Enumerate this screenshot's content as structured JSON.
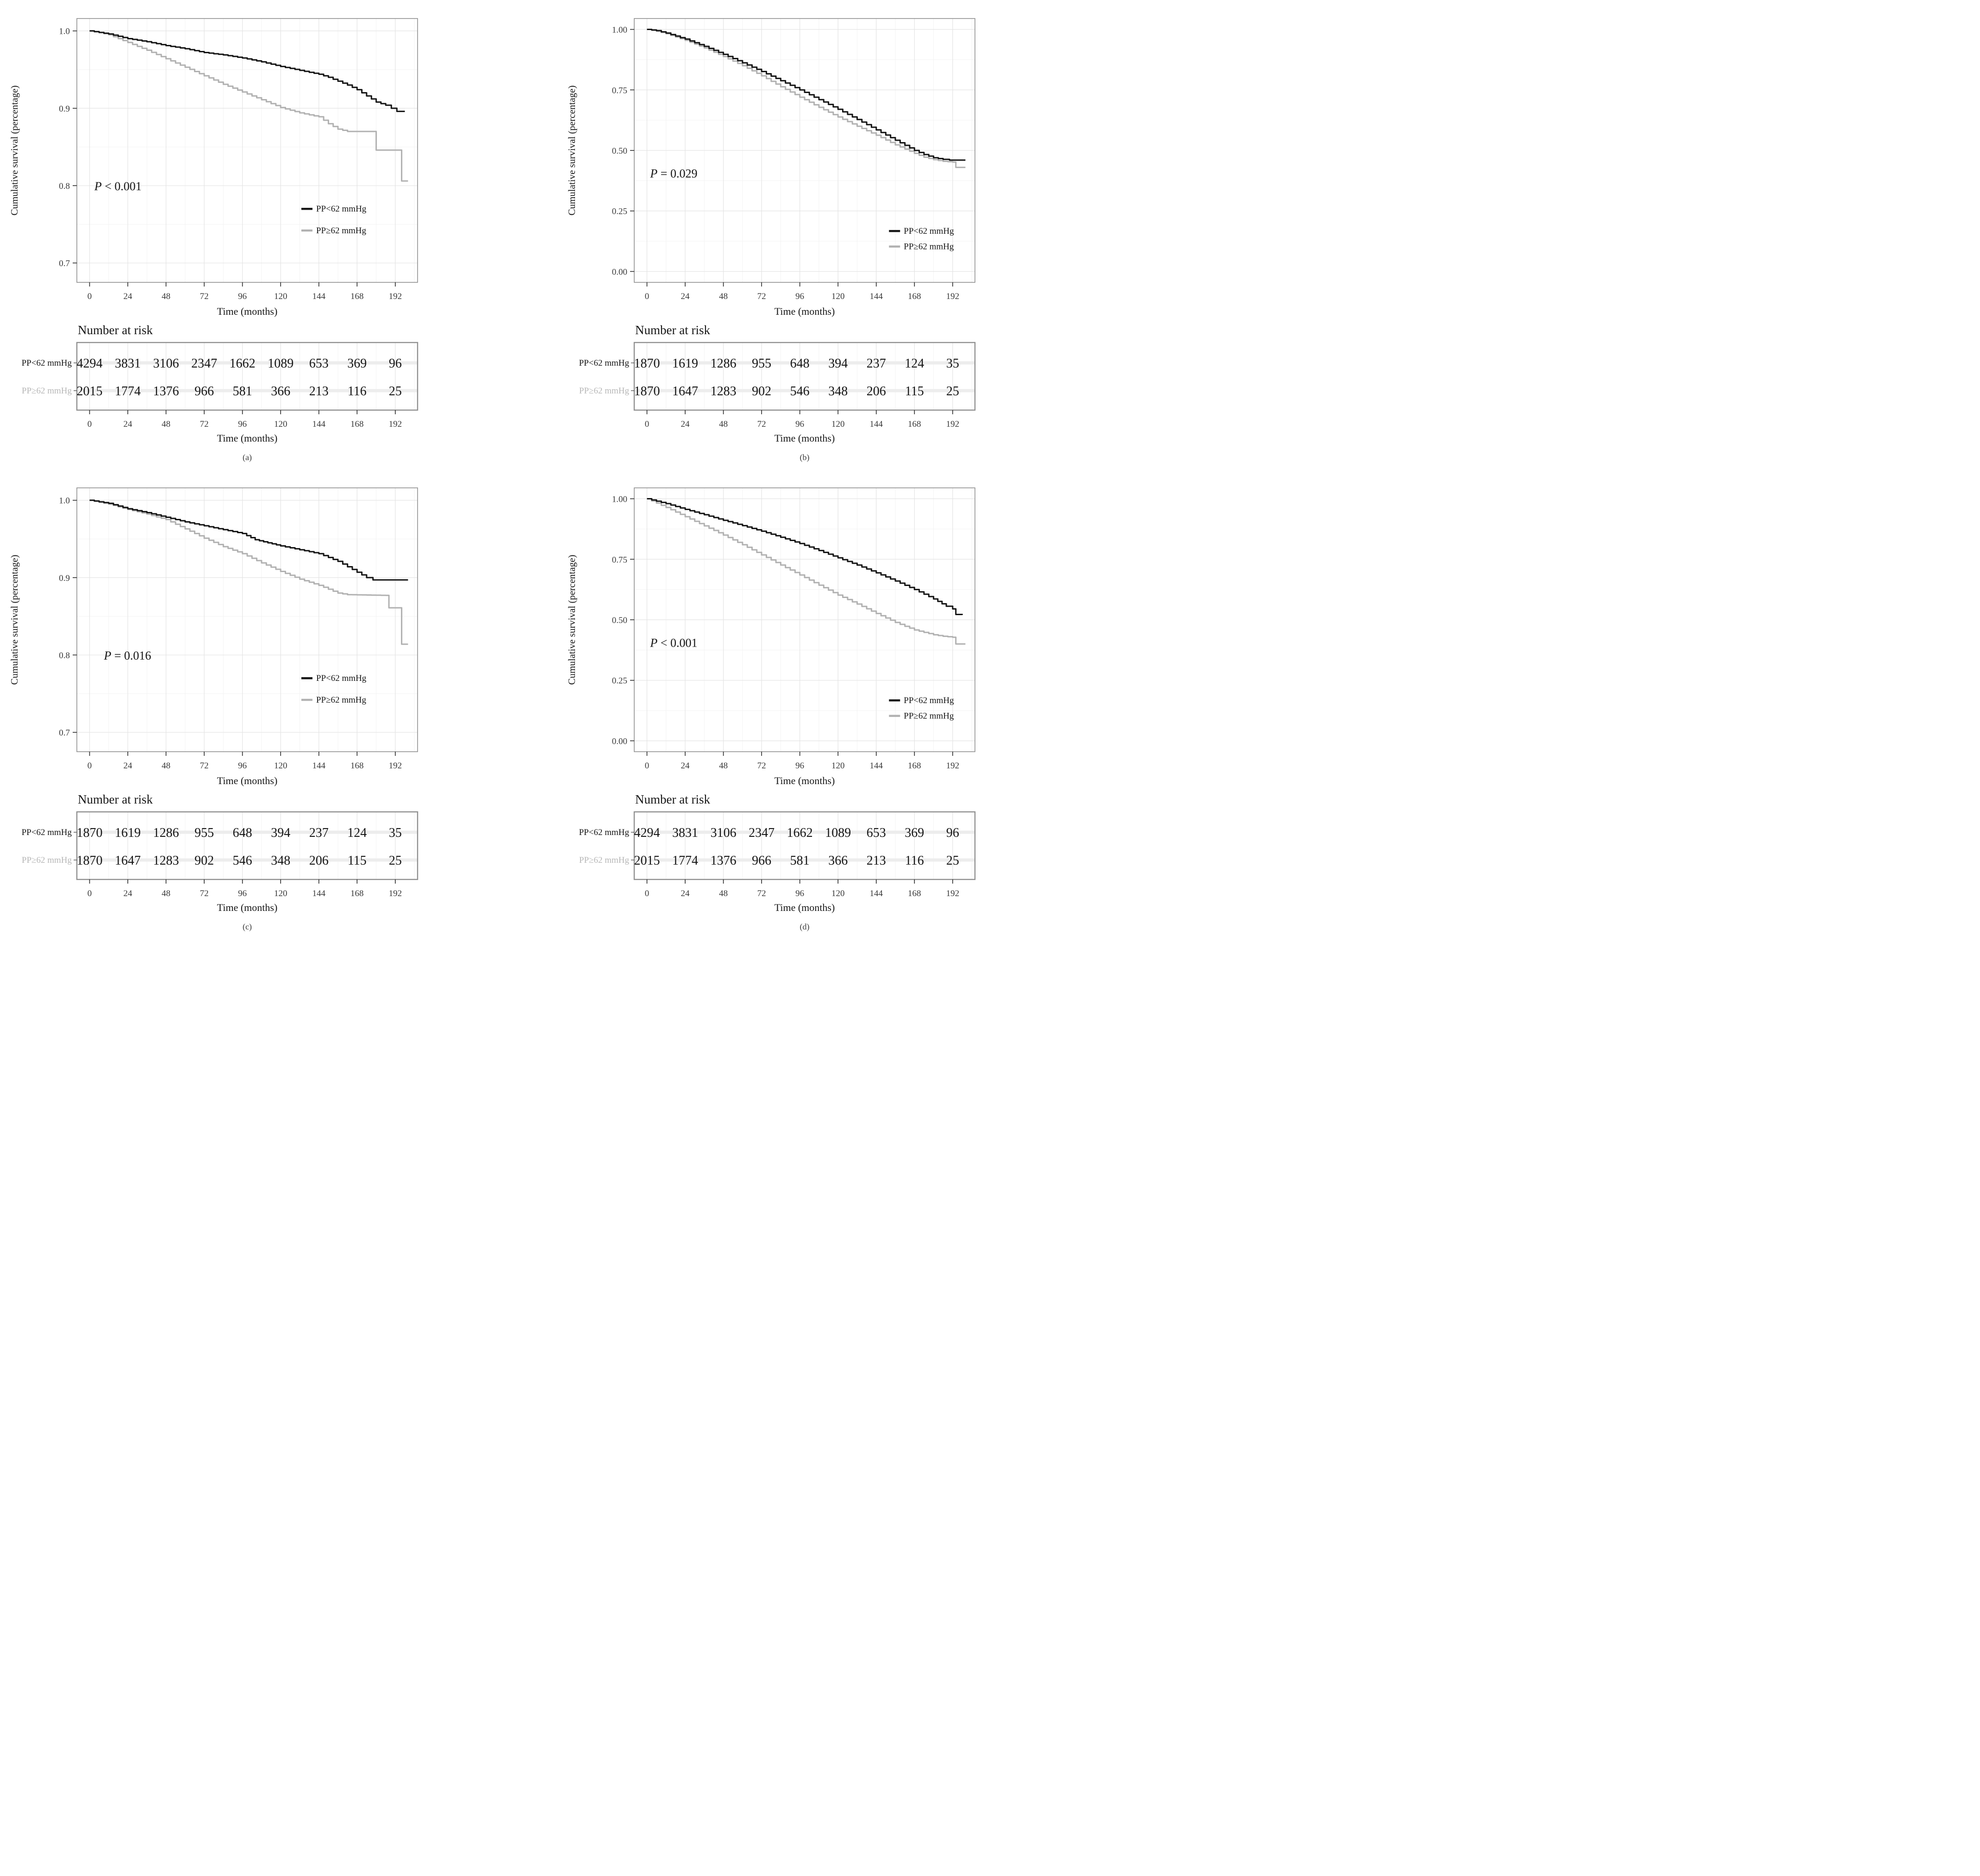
{
  "figure": {
    "ylabel": "Cumulative survival (percentage)",
    "xlabel": "Time (months)",
    "risk_title": "Number at risk",
    "legend": [
      {
        "label": "PP<62 mmHg",
        "color": "#151515"
      },
      {
        "label": "PP≥62 mmHg",
        "color": "#b1b1b1"
      }
    ],
    "xticks": {
      "values": [
        0,
        24,
        48,
        72,
        96,
        120,
        144,
        168,
        192
      ],
      "labels": [
        "0",
        "24",
        "48",
        "72",
        "96",
        "120",
        "144",
        "168",
        "192"
      ]
    },
    "xminor": [
      12,
      36,
      60,
      84,
      108,
      132,
      156,
      180,
      204
    ],
    "xlim": [
      -8,
      206
    ],
    "colors": {
      "grid_major": "#e4e4e4",
      "grid_minor": "#f2f2f2",
      "panel_border": "#8f8f8f",
      "tick_label": "#3a3a3a",
      "text": "#161616",
      "row_label_muted": "#b7b7b7",
      "row_band": "#ededed",
      "caption": "#3c3c3c"
    }
  },
  "chart_data": [
    {
      "id": "a",
      "type": "line",
      "caption": "(a)",
      "title": "",
      "xlabel": "Time (months)",
      "ylabel": "Cumulative survival (percentage)",
      "p_label": "P < 0.001",
      "p_italic": "P",
      "p_rest": " < 0.001",
      "ylim": [
        0.675,
        1.016
      ],
      "yticks": {
        "values": [
          1.0,
          0.9,
          0.8,
          0.7
        ],
        "labels": [
          "1.0",
          "0.9",
          "0.8",
          "0.7"
        ]
      },
      "yminor": [
        0.95,
        0.85,
        0.75
      ],
      "p_pos": {
        "x": 3,
        "y": 0.794
      },
      "legend_x": 133,
      "legend_y": [
        0.77,
        0.742
      ],
      "series": [
        {
          "name": "PP<62 mmHg",
          "points": [
            [
              0,
              1.0
            ],
            [
              6,
              0.998
            ],
            [
              12,
              0.996
            ],
            [
              24,
              0.99
            ],
            [
              36,
              0.986
            ],
            [
              48,
              0.981
            ],
            [
              60,
              0.977
            ],
            [
              72,
              0.972
            ],
            [
              84,
              0.969
            ],
            [
              96,
              0.965
            ],
            [
              108,
              0.96
            ],
            [
              120,
              0.954
            ],
            [
              132,
              0.949
            ],
            [
              144,
              0.944
            ],
            [
              150,
              0.94
            ],
            [
              156,
              0.935
            ],
            [
              162,
              0.93
            ],
            [
              168,
              0.924
            ],
            [
              174,
              0.916
            ],
            [
              180,
              0.908
            ],
            [
              186,
              0.904
            ],
            [
              193,
              0.896
            ],
            [
              198,
              0.896
            ]
          ]
        },
        {
          "name": "PP≥62 mmHg",
          "points": [
            [
              0,
              1.0
            ],
            [
              6,
              0.998
            ],
            [
              12,
              0.995
            ],
            [
              24,
              0.985
            ],
            [
              36,
              0.975
            ],
            [
              48,
              0.964
            ],
            [
              60,
              0.953
            ],
            [
              72,
              0.942
            ],
            [
              84,
              0.931
            ],
            [
              96,
              0.921
            ],
            [
              108,
              0.911
            ],
            [
              120,
              0.901
            ],
            [
              132,
              0.894
            ],
            [
              144,
              0.889
            ],
            [
              150,
              0.88
            ],
            [
              156,
              0.873
            ],
            [
              162,
              0.87
            ],
            [
              178,
              0.87
            ],
            [
              180,
              0.846
            ],
            [
              194,
              0.846
            ],
            [
              196,
              0.806
            ],
            [
              200,
              0.806
            ]
          ]
        }
      ],
      "risk_table": {
        "rows": [
          {
            "label": "PP<62 mmHg",
            "counts": [
              "4294",
              "3831",
              "3106",
              "2347",
              "1662",
              "1089",
              "653",
              "369",
              "96"
            ]
          },
          {
            "label": "PP≥62 mmHg",
            "counts": [
              "2015",
              "1774",
              "1376",
              "966",
              "581",
              "366",
              "213",
              "116",
              "25"
            ]
          }
        ]
      }
    },
    {
      "id": "b",
      "type": "line",
      "caption": "(b)",
      "title": "",
      "xlabel": "Time (months)",
      "ylabel": "Cumulative survival (percentage)",
      "p_label": "P = 0.029",
      "p_italic": "P",
      "p_rest": " = 0.029",
      "ylim": [
        -0.045,
        1.045
      ],
      "yticks": {
        "values": [
          1.0,
          0.75,
          0.5,
          0.25,
          0.0
        ],
        "labels": [
          "1.00",
          "0.75",
          "0.50",
          "0.25",
          "0.00"
        ]
      },
      "yminor": [
        0.875,
        0.625,
        0.375,
        0.125
      ],
      "p_pos": {
        "x": 2,
        "y": 0.388
      },
      "legend_x": 152,
      "legend_y": [
        0.167,
        0.103
      ],
      "series": [
        {
          "name": "PP<62 mmHg",
          "points": [
            [
              0,
              1.0
            ],
            [
              6,
              0.995
            ],
            [
              12,
              0.985
            ],
            [
              24,
              0.96
            ],
            [
              36,
              0.93
            ],
            [
              48,
              0.897
            ],
            [
              60,
              0.862
            ],
            [
              72,
              0.826
            ],
            [
              84,
              0.788
            ],
            [
              96,
              0.75
            ],
            [
              108,
              0.71
            ],
            [
              120,
              0.67
            ],
            [
              132,
              0.628
            ],
            [
              144,
              0.585
            ],
            [
              156,
              0.542
            ],
            [
              168,
              0.5
            ],
            [
              174,
              0.483
            ],
            [
              180,
              0.47
            ],
            [
              186,
              0.463
            ],
            [
              190,
              0.46
            ],
            [
              200,
              0.46
            ]
          ]
        },
        {
          "name": "PP≥62 mmHg",
          "points": [
            [
              0,
              1.0
            ],
            [
              6,
              0.993
            ],
            [
              12,
              0.982
            ],
            [
              24,
              0.955
            ],
            [
              36,
              0.923
            ],
            [
              48,
              0.888
            ],
            [
              60,
              0.85
            ],
            [
              72,
              0.808
            ],
            [
              84,
              0.763
            ],
            [
              96,
              0.72
            ],
            [
              108,
              0.678
            ],
            [
              120,
              0.638
            ],
            [
              132,
              0.6
            ],
            [
              144,
              0.563
            ],
            [
              156,
              0.523
            ],
            [
              168,
              0.488
            ],
            [
              174,
              0.472
            ],
            [
              180,
              0.462
            ],
            [
              186,
              0.455
            ],
            [
              192,
              0.452
            ],
            [
              194,
              0.43
            ],
            [
              200,
              0.43
            ]
          ]
        }
      ],
      "risk_table": {
        "rows": [
          {
            "label": "PP<62 mmHg",
            "counts": [
              "1870",
              "1619",
              "1286",
              "955",
              "648",
              "394",
              "237",
              "124",
              "35"
            ]
          },
          {
            "label": "PP≥62 mmHg",
            "counts": [
              "1870",
              "1647",
              "1283",
              "902",
              "546",
              "348",
              "206",
              "115",
              "25"
            ]
          }
        ]
      }
    },
    {
      "id": "c",
      "type": "line",
      "caption": "(c)",
      "title": "",
      "xlabel": "Time (months)",
      "ylabel": "Cumulative survival (percentage)",
      "p_label": "P = 0.016",
      "p_italic": "P",
      "p_rest": " = 0.016",
      "ylim": [
        0.675,
        1.016
      ],
      "yticks": {
        "values": [
          1.0,
          0.9,
          0.8,
          0.7
        ],
        "labels": [
          "1.0",
          "0.9",
          "0.8",
          "0.7"
        ]
      },
      "yminor": [
        0.95,
        0.85,
        0.75
      ],
      "p_pos": {
        "x": 9,
        "y": 0.794
      },
      "legend_x": 133,
      "legend_y": [
        0.77,
        0.742
      ],
      "series": [
        {
          "name": "PP<62 mmHg",
          "points": [
            [
              0,
              1.0
            ],
            [
              12,
              0.996
            ],
            [
              24,
              0.989
            ],
            [
              36,
              0.984
            ],
            [
              48,
              0.978
            ],
            [
              60,
              0.972
            ],
            [
              72,
              0.967
            ],
            [
              84,
              0.962
            ],
            [
              96,
              0.957
            ],
            [
              104,
              0.949
            ],
            [
              112,
              0.945
            ],
            [
              120,
              0.941
            ],
            [
              132,
              0.936
            ],
            [
              144,
              0.931
            ],
            [
              150,
              0.926
            ],
            [
              156,
              0.921
            ],
            [
              162,
              0.914
            ],
            [
              168,
              0.907
            ],
            [
              174,
              0.9
            ],
            [
              178,
              0.897
            ],
            [
              200,
              0.897
            ]
          ]
        },
        {
          "name": "PP≥62 mmHg",
          "points": [
            [
              0,
              1.0
            ],
            [
              12,
              0.995
            ],
            [
              24,
              0.988
            ],
            [
              36,
              0.982
            ],
            [
              48,
              0.975
            ],
            [
              60,
              0.963
            ],
            [
              72,
              0.951
            ],
            [
              84,
              0.94
            ],
            [
              96,
              0.931
            ],
            [
              108,
              0.919
            ],
            [
              120,
              0.908
            ],
            [
              132,
              0.898
            ],
            [
              144,
              0.89
            ],
            [
              150,
              0.885
            ],
            [
              156,
              0.88
            ],
            [
              162,
              0.878
            ],
            [
              186,
              0.877
            ],
            [
              188,
              0.861
            ],
            [
              194,
              0.861
            ],
            [
              196,
              0.814
            ],
            [
              200,
              0.814
            ]
          ]
        }
      ],
      "risk_table": {
        "rows": [
          {
            "label": "PP<62 mmHg",
            "counts": [
              "1870",
              "1619",
              "1286",
              "955",
              "648",
              "394",
              "237",
              "124",
              "35"
            ]
          },
          {
            "label": "PP≥62 mmHg",
            "counts": [
              "1870",
              "1647",
              "1283",
              "902",
              "546",
              "348",
              "206",
              "115",
              "25"
            ]
          }
        ]
      }
    },
    {
      "id": "d",
      "type": "line",
      "caption": "(d)",
      "title": "",
      "xlabel": "Time (months)",
      "ylabel": "Cumulative survival (percentage)",
      "p_label": "P < 0.001",
      "p_italic": "P",
      "p_rest": " < 0.001",
      "ylim": [
        -0.045,
        1.045
      ],
      "yticks": {
        "values": [
          1.0,
          0.75,
          0.5,
          0.25,
          0.0
        ],
        "labels": [
          "1.00",
          "0.75",
          "0.50",
          "0.25",
          "0.00"
        ]
      },
      "yminor": [
        0.875,
        0.625,
        0.375,
        0.125
      ],
      "p_pos": {
        "x": 2,
        "y": 0.388
      },
      "legend_x": 152,
      "legend_y": [
        0.167,
        0.103
      ],
      "series": [
        {
          "name": "PP<62 mmHg",
          "points": [
            [
              0,
              1.0
            ],
            [
              6,
              0.99
            ],
            [
              12,
              0.98
            ],
            [
              24,
              0.956
            ],
            [
              36,
              0.934
            ],
            [
              48,
              0.911
            ],
            [
              60,
              0.889
            ],
            [
              72,
              0.866
            ],
            [
              84,
              0.841
            ],
            [
              96,
              0.815
            ],
            [
              108,
              0.786
            ],
            [
              120,
              0.756
            ],
            [
              132,
              0.726
            ],
            [
              144,
              0.694
            ],
            [
              156,
              0.66
            ],
            [
              168,
              0.625
            ],
            [
              180,
              0.586
            ],
            [
              188,
              0.556
            ],
            [
              192,
              0.545
            ],
            [
              194,
              0.522
            ],
            [
              198,
              0.52
            ]
          ]
        },
        {
          "name": "PP≥62 mmHg",
          "points": [
            [
              0,
              1.0
            ],
            [
              6,
              0.982
            ],
            [
              12,
              0.964
            ],
            [
              24,
              0.926
            ],
            [
              36,
              0.888
            ],
            [
              48,
              0.85
            ],
            [
              60,
              0.81
            ],
            [
              72,
              0.768
            ],
            [
              84,
              0.726
            ],
            [
              96,
              0.685
            ],
            [
              108,
              0.643
            ],
            [
              120,
              0.602
            ],
            [
              132,
              0.565
            ],
            [
              144,
              0.526
            ],
            [
              156,
              0.489
            ],
            [
              162,
              0.473
            ],
            [
              168,
              0.458
            ],
            [
              174,
              0.448
            ],
            [
              180,
              0.438
            ],
            [
              186,
              0.432
            ],
            [
              192,
              0.428
            ],
            [
              194,
              0.4
            ],
            [
              200,
              0.4
            ]
          ]
        }
      ],
      "risk_table": {
        "rows": [
          {
            "label": "PP<62 mmHg",
            "counts": [
              "4294",
              "3831",
              "3106",
              "2347",
              "1662",
              "1089",
              "653",
              "369",
              "96"
            ]
          },
          {
            "label": "PP≥62 mmHg",
            "counts": [
              "2015",
              "1774",
              "1376",
              "966",
              "581",
              "366",
              "213",
              "116",
              "25"
            ]
          }
        ]
      }
    }
  ]
}
